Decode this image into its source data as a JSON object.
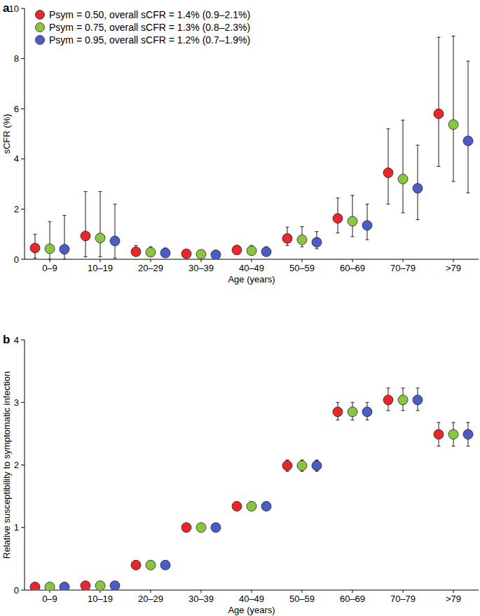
{
  "chart_data": [
    {
      "type": "scatter",
      "title": "a",
      "ylabel": "sCFR (%)",
      "xlabel": "Age (years)",
      "categories": [
        "0–9",
        "10–19",
        "20–29",
        "30–39",
        "40–49",
        "50–59",
        "60–69",
        "70–79",
        ">79"
      ],
      "ylim": [
        0,
        10
      ],
      "yticks": [
        0,
        2,
        4,
        6,
        8,
        10
      ],
      "legend": "top-left",
      "marker": "circle",
      "series": [
        {
          "name": "Psym = 0.50, overall sCFR = 1.4% (0.9–2.1%)",
          "color": "#e8262b",
          "values": [
            0.45,
            0.93,
            0.3,
            0.22,
            0.37,
            0.83,
            1.63,
            3.45,
            5.8
          ],
          "lower": [
            0.05,
            0.1,
            0.15,
            0.12,
            0.22,
            0.55,
            1.05,
            2.2,
            3.7
          ],
          "upper": [
            1.0,
            2.7,
            0.55,
            0.35,
            0.55,
            1.28,
            2.45,
            5.2,
            8.85
          ]
        },
        {
          "name": "Psym = 0.75, overall sCFR = 1.3% (0.8–2.3%)",
          "color": "#8bc43f",
          "values": [
            0.42,
            0.85,
            0.28,
            0.2,
            0.34,
            0.78,
            1.52,
            3.2,
            5.37
          ],
          "lower": [
            0,
            0.1,
            0.15,
            0.1,
            0.2,
            0.5,
            0.9,
            1.85,
            3.1
          ],
          "upper": [
            1.5,
            2.7,
            0.5,
            0.32,
            0.55,
            1.3,
            2.55,
            5.55,
            8.9
          ]
        },
        {
          "name": "Psym = 0.95, overall sCFR = 1.2% (0.7–1.9%)",
          "color": "#4b5cc4",
          "values": [
            0.4,
            0.73,
            0.25,
            0.18,
            0.3,
            0.68,
            1.35,
            2.83,
            4.72
          ],
          "lower": [
            0,
            0.05,
            0.12,
            0.1,
            0.18,
            0.42,
            0.78,
            1.58,
            2.65
          ],
          "upper": [
            1.75,
            2.2,
            0.45,
            0.3,
            0.5,
            1.1,
            2.2,
            4.55,
            7.9
          ]
        }
      ]
    },
    {
      "type": "scatter",
      "title": "b",
      "ylabel": "Relative susceptibility to symptomatic infection",
      "xlabel": "Age (years)",
      "categories": [
        "0–9",
        "10–19",
        "20–29",
        "30–39",
        "40–49",
        "50–59",
        "60–69",
        "70–79",
        ">79"
      ],
      "ylim": [
        0,
        4
      ],
      "yticks": [
        0,
        1,
        2,
        3,
        4
      ],
      "marker": "circle",
      "series": [
        {
          "color": "#e8262b",
          "values": [
            0.05,
            0.07,
            0.4,
            1.0,
            1.34,
            1.99,
            2.85,
            3.04,
            2.49
          ],
          "lower": [
            0.04,
            0.05,
            0.38,
            1.0,
            1.29,
            1.9,
            2.72,
            2.87,
            2.3
          ],
          "upper": [
            0.06,
            0.09,
            0.42,
            1.0,
            1.41,
            2.08,
            3.0,
            3.23,
            2.68
          ]
        },
        {
          "color": "#8bc43f",
          "values": [
            0.05,
            0.07,
            0.4,
            1.0,
            1.34,
            1.99,
            2.85,
            3.04,
            2.49
          ],
          "lower": [
            0.04,
            0.05,
            0.38,
            1.0,
            1.29,
            1.9,
            2.72,
            2.87,
            2.3
          ],
          "upper": [
            0.06,
            0.09,
            0.42,
            1.0,
            1.41,
            2.08,
            3.0,
            3.23,
            2.68
          ]
        },
        {
          "color": "#4b5cc4",
          "values": [
            0.05,
            0.07,
            0.4,
            1.0,
            1.34,
            1.99,
            2.85,
            3.04,
            2.49
          ],
          "lower": [
            0.04,
            0.05,
            0.38,
            1.0,
            1.29,
            1.9,
            2.72,
            2.87,
            2.3
          ],
          "upper": [
            0.06,
            0.09,
            0.42,
            1.0,
            1.41,
            2.08,
            3.0,
            3.23,
            2.68
          ]
        }
      ]
    }
  ]
}
